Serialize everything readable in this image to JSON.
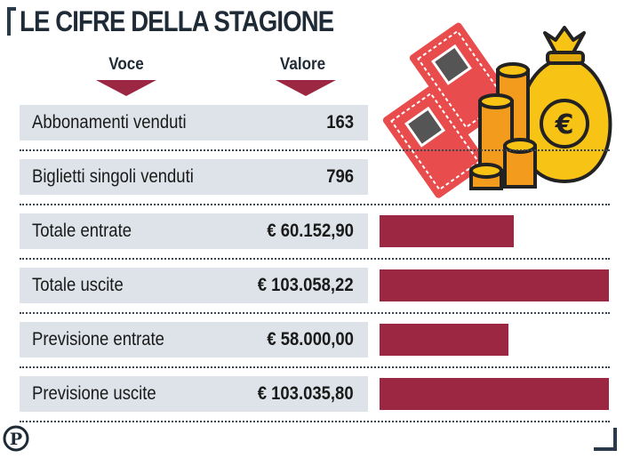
{
  "header": {
    "title": "LE CIFRE DELLA STAGIONE",
    "col_voce": "Voce",
    "col_valore": "Valore"
  },
  "colors": {
    "accent": "#9b2743",
    "row_bg": "#dde3e8",
    "title": "#1e2a36"
  },
  "logo_letter": "P",
  "chart_data": {
    "type": "table",
    "columns": [
      "Voce",
      "Valore"
    ],
    "rows": [
      {
        "label": "Abbonamenti venduti",
        "value": "163",
        "numeric": 163
      },
      {
        "label": "Biglietti singoli venduti",
        "value": "796",
        "numeric": 796
      },
      {
        "label": "Totale entrate",
        "value": "€ 60.152,90",
        "numeric": 60152.9,
        "bar": true
      },
      {
        "label": "Totale uscite",
        "value": "€ 103.058,22",
        "numeric": 103058.22,
        "bar": true
      },
      {
        "label": "Previsione entrate",
        "value": "€ 58.000,00",
        "numeric": 58000.0,
        "bar": true
      },
      {
        "label": "Previsione uscite",
        "value": "€ 103.035,80",
        "numeric": 103035.8,
        "bar": true
      }
    ],
    "bar_max": 103058.22
  }
}
